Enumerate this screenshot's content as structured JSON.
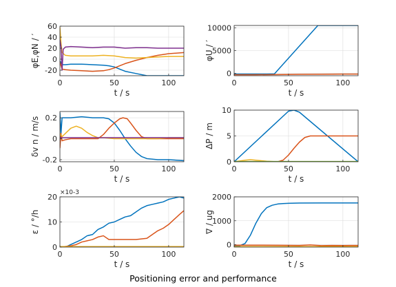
{
  "figure": {
    "caption": "Positioning error and performance"
  },
  "colors": {
    "series": [
      "#0072bd",
      "#d95319",
      "#edb120",
      "#7e2f8e",
      "#77ac30"
    ]
  },
  "chart_data": [
    {
      "type": "line",
      "xlabel": "t / s",
      "ylabel": "φE,φN / ′",
      "xlim": [
        0,
        114
      ],
      "ylim": [
        -30,
        60
      ],
      "xticks": [
        0,
        50,
        100
      ],
      "yticks": [
        -20,
        0,
        20,
        40,
        60
      ],
      "grid": true,
      "series": [
        {
          "x": [
            0,
            2,
            5,
            10,
            20,
            30,
            40,
            45,
            50,
            55,
            60,
            70,
            80,
            90,
            100,
            114
          ],
          "values": [
            -3,
            -10,
            -10,
            -9,
            -9,
            -10,
            -11,
            -12,
            -14,
            -18,
            -22,
            -26,
            -30,
            -30,
            -30,
            -30
          ]
        },
        {
          "x": [
            0,
            2,
            5,
            10,
            20,
            30,
            40,
            45,
            50,
            55,
            60,
            70,
            80,
            90,
            100,
            114
          ],
          "values": [
            -5,
            -18,
            -19,
            -20,
            -21,
            -22,
            -21,
            -19,
            -16,
            -12,
            -8,
            -2,
            3,
            7,
            10,
            12
          ]
        },
        {
          "x": [
            0,
            1,
            2,
            5,
            10,
            20,
            30,
            40,
            50,
            60,
            70,
            80,
            90,
            100,
            114
          ],
          "values": [
            58,
            30,
            12,
            7,
            6,
            6,
            6,
            7,
            6,
            3,
            2,
            3,
            4,
            5,
            5
          ]
        },
        {
          "x": [
            0,
            1,
            2,
            3,
            5,
            10,
            20,
            30,
            40,
            50,
            60,
            70,
            80,
            90,
            100,
            114
          ],
          "values": [
            35,
            22,
            -20,
            18,
            22,
            23,
            22,
            21,
            22,
            22,
            20,
            21,
            21,
            20,
            20,
            20
          ]
        }
      ]
    },
    {
      "type": "line",
      "xlabel": "t / s",
      "ylabel": "φU / ′",
      "xlim": [
        0,
        114
      ],
      "ylim": [
        -500,
        10500
      ],
      "xticks": [
        0,
        50,
        100
      ],
      "yticks": [
        0,
        5000,
        10000
      ],
      "grid": true,
      "series": [
        {
          "x": [
            0,
            30,
            37,
            77,
            114
          ],
          "values": [
            -150,
            -150,
            -100,
            10500,
            10500
          ]
        },
        {
          "x": [
            0,
            20,
            40,
            60,
            80,
            100,
            114
          ],
          "values": [
            -300,
            -300,
            -250,
            -200,
            -180,
            -150,
            -150
          ]
        }
      ]
    },
    {
      "type": "line",
      "xlabel": "t / s",
      "ylabel": "δv n / m/s",
      "xlim": [
        0,
        114
      ],
      "ylim": [
        -0.22,
        0.26
      ],
      "xticks": [
        0,
        50,
        100
      ],
      "yticks": [
        -0.2,
        0,
        0.2
      ],
      "grid": true,
      "series": [
        {
          "x": [
            0,
            1,
            2,
            5,
            10,
            20,
            30,
            40,
            45,
            50,
            55,
            60,
            65,
            70,
            75,
            80,
            90,
            100,
            114
          ],
          "values": [
            0.25,
            0.05,
            0.2,
            0.2,
            0.2,
            0.21,
            0.2,
            0.2,
            0.19,
            0.15,
            0.08,
            0,
            -0.07,
            -0.13,
            -0.17,
            -0.19,
            -0.2,
            -0.2,
            -0.21
          ]
        },
        {
          "x": [
            0,
            1,
            2,
            5,
            10,
            20,
            30,
            35,
            40,
            45,
            50,
            55,
            58,
            62,
            65,
            70,
            75,
            80,
            90,
            114
          ],
          "values": [
            -0.09,
            0.05,
            -0.02,
            -0.01,
            0,
            0,
            0,
            0,
            0.04,
            0.1,
            0.15,
            0.19,
            0.2,
            0.19,
            0.15,
            0.08,
            0.02,
            0,
            0,
            0
          ]
        },
        {
          "x": [
            0,
            2,
            5,
            10,
            15,
            20,
            25,
            30,
            35,
            40,
            50,
            60,
            70,
            80,
            90,
            100,
            114
          ],
          "values": [
            0.05,
            0.02,
            0.05,
            0.1,
            0.12,
            0.1,
            0.06,
            0.03,
            0.01,
            0.01,
            0,
            0,
            0,
            0,
            0,
            0.01,
            0.01
          ]
        },
        {
          "x": [
            0,
            20,
            40,
            60,
            80,
            100,
            114
          ],
          "values": [
            0.01,
            0.01,
            0.01,
            0.01,
            0.01,
            0.01,
            0.01
          ]
        }
      ]
    },
    {
      "type": "line",
      "xlabel": "t / s",
      "ylabel": "ΔP / m",
      "xlim": [
        0,
        114
      ],
      "ylim": [
        0,
        10
      ],
      "xticks": [
        0,
        50,
        100
      ],
      "yticks": [
        0,
        5,
        10
      ],
      "grid": true,
      "series": [
        {
          "x": [
            0,
            50,
            55,
            60,
            114
          ],
          "values": [
            0,
            9.8,
            10,
            9.6,
            0
          ]
        },
        {
          "x": [
            0,
            40,
            45,
            50,
            55,
            60,
            65,
            70,
            75,
            114
          ],
          "values": [
            0,
            0,
            0.3,
            1.3,
            2.6,
            3.8,
            4.7,
            5,
            5,
            5
          ]
        },
        {
          "x": [
            0,
            10,
            15,
            20,
            30,
            40,
            114
          ],
          "values": [
            0,
            0.3,
            0.4,
            0.3,
            0.1,
            0,
            0
          ]
        },
        {
          "x": [
            0,
            114
          ],
          "values": [
            0,
            0
          ]
        },
        {
          "x": [
            0,
            114
          ],
          "values": [
            0.05,
            0.05
          ]
        }
      ]
    },
    {
      "type": "line",
      "xlabel": "t / s",
      "ylabel": "ε / °/h",
      "exponent_label": "×10-3",
      "xlim": [
        0,
        114
      ],
      "ylim": [
        0,
        0.02
      ],
      "xticks": [
        0,
        50,
        100
      ],
      "yticks": [
        0,
        0.01,
        0.02
      ],
      "ytick_labels": [
        "0",
        "10",
        "20"
      ],
      "grid": true,
      "series": [
        {
          "x": [
            0,
            5,
            10,
            15,
            20,
            25,
            30,
            35,
            40,
            45,
            50,
            55,
            60,
            65,
            70,
            75,
            80,
            85,
            90,
            95,
            100,
            105,
            110,
            114
          ],
          "values": [
            0,
            0,
            0.001,
            0.002,
            0.003,
            0.0045,
            0.005,
            0.007,
            0.008,
            0.0095,
            0.01,
            0.011,
            0.012,
            0.0125,
            0.014,
            0.0155,
            0.0165,
            0.017,
            0.0175,
            0.018,
            0.019,
            0.0195,
            0.02,
            0.0195
          ]
        },
        {
          "x": [
            0,
            10,
            15,
            20,
            25,
            30,
            35,
            40,
            45,
            50,
            55,
            60,
            70,
            80,
            85,
            90,
            95,
            100,
            105,
            110,
            114
          ],
          "values": [
            0,
            0.0005,
            0.001,
            0.002,
            0.0025,
            0.003,
            0.004,
            0.0045,
            0.003,
            0.003,
            0.003,
            0.003,
            0.003,
            0.0035,
            0.005,
            0.0065,
            0.0075,
            0.009,
            0.011,
            0.013,
            0.0145
          ]
        },
        {
          "x": [
            0,
            114
          ],
          "values": [
            0.0002,
            0.0002
          ]
        }
      ]
    },
    {
      "type": "line",
      "xlabel": "t / s",
      "ylabel": "∇ / ug",
      "xlim": [
        0,
        114
      ],
      "ylim": [
        -100,
        2000
      ],
      "xticks": [
        0,
        50,
        100
      ],
      "yticks": [
        0,
        1000,
        2000
      ],
      "grid": true,
      "series": [
        {
          "x": [
            0,
            5,
            10,
            15,
            20,
            25,
            30,
            35,
            40,
            45,
            50,
            60,
            80,
            100,
            114
          ],
          "values": [
            -50,
            -40,
            50,
            400,
            900,
            1300,
            1550,
            1650,
            1700,
            1720,
            1730,
            1740,
            1745,
            1745,
            1745
          ]
        },
        {
          "x": [
            0,
            20,
            40,
            60,
            70,
            80,
            90,
            100,
            114
          ],
          "values": [
            -20,
            -20,
            -25,
            -30,
            -10,
            -40,
            -30,
            -35,
            -30
          ]
        },
        {
          "x": [
            0,
            114
          ],
          "values": [
            -80,
            -80
          ]
        }
      ]
    }
  ]
}
